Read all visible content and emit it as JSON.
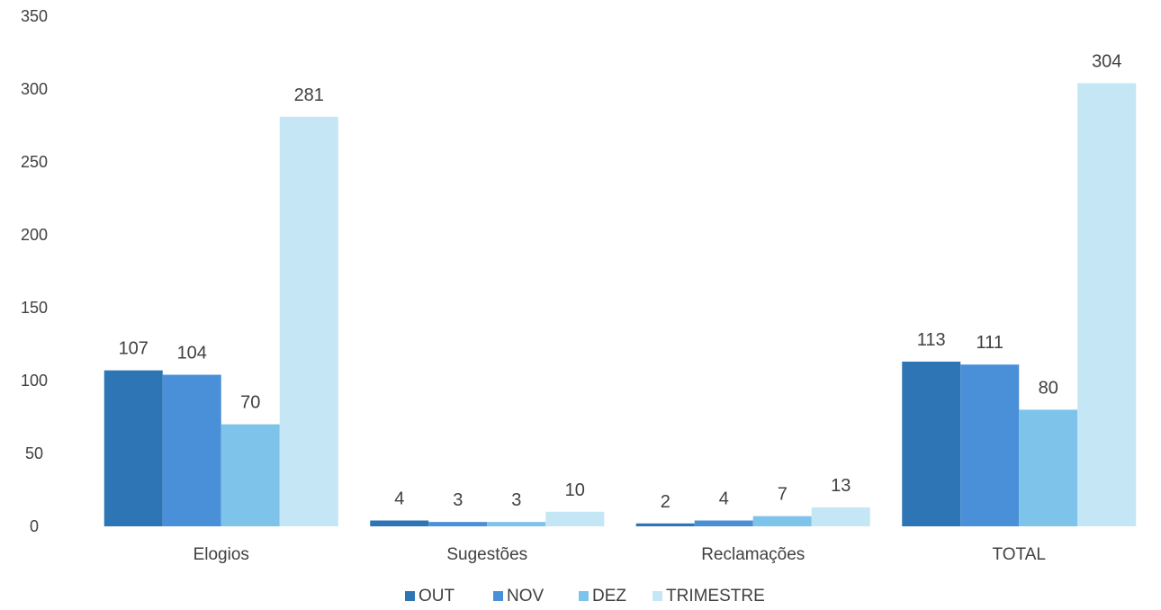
{
  "chart_data": {
    "type": "bar",
    "categories": [
      "Elogios",
      "Sugestões",
      "Reclamações",
      "TOTAL"
    ],
    "series": [
      {
        "name": "OUT",
        "color": "#2e75b6",
        "values": [
          107,
          4,
          2,
          113
        ]
      },
      {
        "name": "NOV",
        "color": "#4a90d9",
        "values": [
          104,
          3,
          4,
          111
        ]
      },
      {
        "name": "DEZ",
        "color": "#7ec3ea",
        "values": [
          70,
          3,
          7,
          80
        ]
      },
      {
        "name": "TRIMESTRE",
        "color": "#c5e6f5",
        "values": [
          281,
          10,
          13,
          304
        ]
      }
    ],
    "ylim": [
      0,
      350
    ],
    "yticks": [
      "0",
      "50",
      "100",
      "150",
      "200",
      "250",
      "300",
      "350"
    ],
    "grid": false,
    "legend": "bottom-center",
    "title": "",
    "xlabel": "",
    "ylabel": ""
  }
}
